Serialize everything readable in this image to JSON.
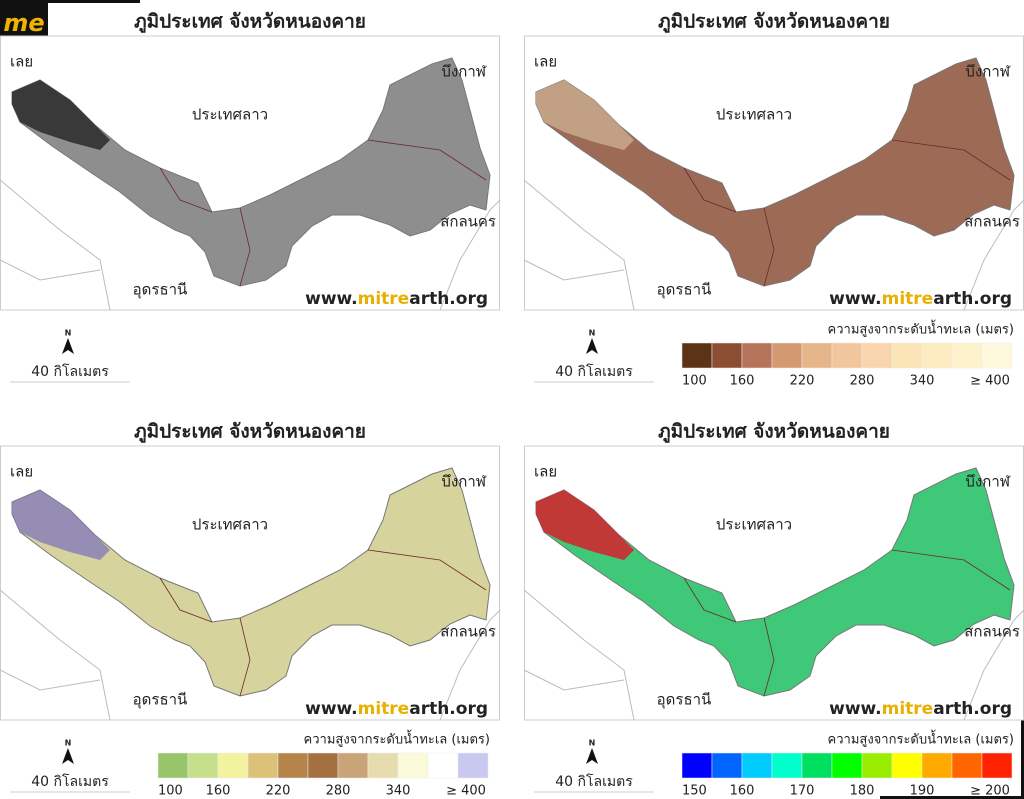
{
  "logo": "me",
  "panels": [
    {
      "title": "ภูมิประเทศ จังหวัดหนองคาย",
      "places": [
        "เลย",
        "ประเทศลาว",
        "บึงกาฬ",
        "สกลนคร",
        "อุดรธานี"
      ],
      "website": [
        "www.",
        "mitre",
        "arth.org"
      ],
      "north": "N",
      "scale": "40 กิโลเมตร",
      "map_color": "#8e8e8e",
      "map_accent": "#2a2a2a"
    },
    {
      "title": "ภูมิประเทศ จังหวัดหนองคาย",
      "places": [
        "เลย",
        "ประเทศลาว",
        "บึงกาฬ",
        "สกลนคร",
        "อุดรธานี"
      ],
      "website": [
        "www.",
        "mitre",
        "arth.org"
      ],
      "north": "N",
      "scale": "40 กิโลเมตร",
      "map_color": "#9c6a55",
      "map_accent": "#c9a98c",
      "legend": {
        "title": "ความสูงจากระดับน้ำทะเล (เมตร)",
        "colors": [
          "#5c3317",
          "#8b4e33",
          "#b5735a",
          "#d39a72",
          "#e7b58a",
          "#f2c69c",
          "#f8d5ad",
          "#fbe4b6",
          "#fcecc0",
          "#fdf2cc",
          "#fef8dd"
        ],
        "labels": [
          "100",
          "160",
          "220",
          "280",
          "340",
          "≥ 400"
        ]
      }
    },
    {
      "title": "ภูมิประเทศ จังหวัดหนองคาย",
      "places": [
        "เลย",
        "ประเทศลาว",
        "บึงกาฬ",
        "สกลนคร",
        "อุดรธานี"
      ],
      "website": [
        "www.",
        "mitre",
        "arth.org"
      ],
      "north": "N",
      "scale": "40 กิโลเมตร",
      "map_color": "#d6d39c",
      "map_accent": "#8a80b8",
      "legend": {
        "title": "ความสูงจากระดับน้ำทะเล (เมตร)",
        "colors": [
          "#98c46a",
          "#c6df8a",
          "#f3f29e",
          "#dcc178",
          "#b4844a",
          "#a4703f",
          "#c9a477",
          "#e7dcae",
          "#fafad8",
          "#ffffff",
          "#c8c8f0"
        ],
        "labels": [
          "100",
          "160",
          "220",
          "280",
          "340",
          "≥ 400"
        ]
      }
    },
    {
      "title": "ภูมิประเทศ จังหวัดหนองคาย",
      "places": [
        "เลย",
        "ประเทศลาว",
        "บึงกาฬ",
        "สกลนคร",
        "อุดรธานี"
      ],
      "website": [
        "www.",
        "mitre",
        "arth.org"
      ],
      "north": "N",
      "scale": "40 กิโลเมตร",
      "map_color": "#3ec878",
      "map_accent": "#d8202a",
      "legend": {
        "title": "ความสูงจากระดับน้ำทะเล (เมตร)",
        "colors": [
          "#0000ff",
          "#0066ff",
          "#00ccff",
          "#00ffcc",
          "#00e060",
          "#00ff00",
          "#99ee00",
          "#ffff00",
          "#ffaa00",
          "#ff6600",
          "#ff2200"
        ],
        "labels": [
          "150",
          "160",
          "170",
          "180",
          "190",
          "≥ 200"
        ]
      }
    }
  ]
}
